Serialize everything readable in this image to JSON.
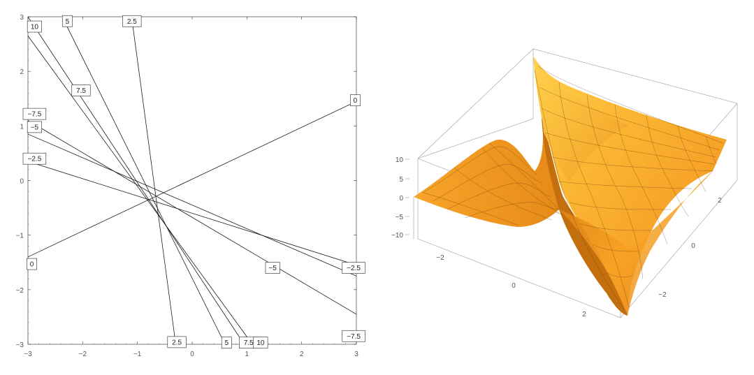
{
  "chart_data": [
    {
      "type": "line",
      "kind": "contour-plot",
      "xlim": [
        -3,
        3
      ],
      "ylim": [
        -3,
        3
      ],
      "x_ticks": [
        -3,
        -2,
        -1,
        0,
        1,
        2,
        3
      ],
      "y_ticks": [
        -3,
        -2,
        -1,
        0,
        1,
        2,
        3
      ],
      "tick_labels_x": [
        "−3",
        "−2",
        "−1",
        "0",
        "1",
        "2",
        "3"
      ],
      "tick_labels_y": [
        "−3",
        "−2",
        "−1",
        "0",
        "1",
        "2",
        "3"
      ],
      "center": [
        -0.65,
        -0.35
      ],
      "grid": false,
      "series": [
        {
          "label": "0",
          "points": [
            [
              -3,
              -1.4
            ],
            [
              3,
              1.45
            ]
          ]
        },
        {
          "label": "2.5",
          "points": [
            [
              -1.1,
              2.95
            ],
            [
              -0.3,
              -3
            ]
          ]
        },
        {
          "label": "5",
          "points": [
            [
              -2.35,
              2.95
            ],
            [
              0.6,
              -3
            ]
          ]
        },
        {
          "label": "7.5",
          "points": [
            [
              -3,
              3
            ],
            [
              0.95,
              -3
            ]
          ]
        },
        {
          "label": "10",
          "points": [
            [
              -3,
              2.65
            ],
            [
              1.1,
              -3
            ]
          ]
        },
        {
          "label": "−7.5",
          "points": [
            [
              -3,
              1.1
            ],
            [
              3,
              -2.45
            ]
          ]
        },
        {
          "label": "−5",
          "points": [
            [
              -3,
              0.85
            ],
            [
              3,
              -1.75
            ]
          ]
        },
        {
          "label": "−2.5",
          "points": [
            [
              -3,
              0.35
            ],
            [
              3,
              -1.55
            ]
          ]
        }
      ],
      "labels": [
        {
          "text": "10",
          "at": [
            -2.88,
            2.82
          ]
        },
        {
          "text": "5",
          "at": [
            -2.28,
            2.92
          ]
        },
        {
          "text": "2.5",
          "at": [
            -1.1,
            2.92
          ]
        },
        {
          "text": "7.5",
          "at": [
            -2.03,
            1.65
          ]
        },
        {
          "text": "−7.5",
          "at": [
            -2.88,
            1.22
          ]
        },
        {
          "text": "−5",
          "at": [
            -2.88,
            0.98
          ]
        },
        {
          "text": "−2.5",
          "at": [
            -2.88,
            0.4
          ]
        },
        {
          "text": "0",
          "at": [
            2.98,
            1.47
          ]
        },
        {
          "text": "0",
          "at": [
            -2.93,
            -1.53
          ]
        },
        {
          "text": "−5",
          "at": [
            1.47,
            -1.6
          ]
        },
        {
          "text": "−2.5",
          "at": [
            2.95,
            -1.6
          ]
        },
        {
          "text": "−7.5",
          "at": [
            2.95,
            -2.85
          ]
        },
        {
          "text": "2.5",
          "at": [
            -0.28,
            -2.96
          ]
        },
        {
          "text": "5",
          "at": [
            0.63,
            -2.97
          ]
        },
        {
          "text": "7.5",
          "at": [
            1.03,
            -2.97
          ]
        },
        {
          "text": "10",
          "at": [
            1.25,
            -2.97
          ]
        }
      ]
    },
    {
      "type": "area",
      "kind": "surface-3d",
      "xlim": [
        -3,
        3
      ],
      "ylim": [
        -3,
        3
      ],
      "zlim": [
        -10,
        10
      ],
      "z_ticks": [
        "10",
        "5",
        "0",
        "−5",
        "−10"
      ],
      "x_ticks": [
        "−2",
        "0",
        "2"
      ],
      "y_ticks": [
        "2",
        "0",
        "−2"
      ],
      "surface_color": "#f59a1c",
      "highlight_color": "#ffd24a",
      "shadow_color": "#b9650a",
      "mesh_color": "#5a320a"
    }
  ]
}
